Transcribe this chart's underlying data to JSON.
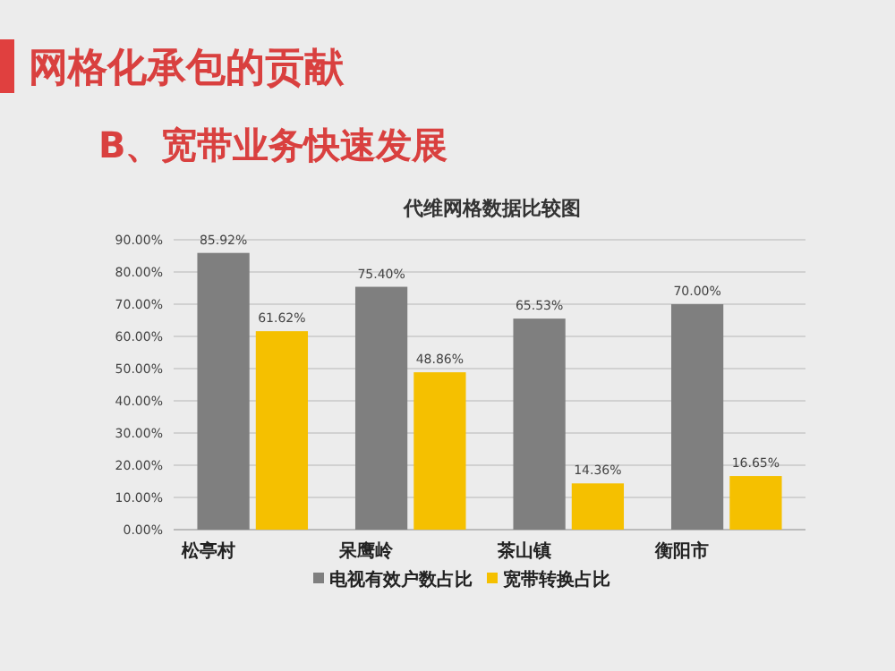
{
  "chart_data": {
    "type": "bar",
    "title": "代维网格数据比较图",
    "annotations": [
      "网格化承包的贡献",
      "B、宽带业务快速发展"
    ],
    "categories": [
      "松亭村",
      "呆鹰岭",
      "茶山镇",
      "衡阳市"
    ],
    "series": [
      {
        "name": "电视有效户数占比",
        "color": "#7f7f7f",
        "values": [
          85.92,
          75.4,
          65.53,
          70.0
        ],
        "value_labels": [
          "85.92%",
          "75.40%",
          "65.53%",
          "70.00%"
        ]
      },
      {
        "name": "宽带转换占比",
        "color": "#f5c000",
        "values": [
          61.62,
          48.86,
          14.36,
          16.65
        ],
        "value_labels": [
          "61.62%",
          "48.86%",
          "14.36%",
          "16.65%"
        ]
      }
    ],
    "ylim": [
      0,
      90
    ],
    "yticks": [
      {
        "value": 0,
        "label": "0.00%"
      },
      {
        "value": 10,
        "label": "10.00%"
      },
      {
        "value": 20,
        "label": "20.00%"
      },
      {
        "value": 30,
        "label": "30.00%"
      },
      {
        "value": 40,
        "label": "40.00%"
      },
      {
        "value": 50,
        "label": "50.00%"
      },
      {
        "value": 60,
        "label": "60.00%"
      },
      {
        "value": 70,
        "label": "70.00%"
      },
      {
        "value": 80,
        "label": "80.00%"
      },
      {
        "value": 90,
        "label": "90.00%"
      }
    ],
    "grid": "y",
    "legend": "bottom"
  }
}
